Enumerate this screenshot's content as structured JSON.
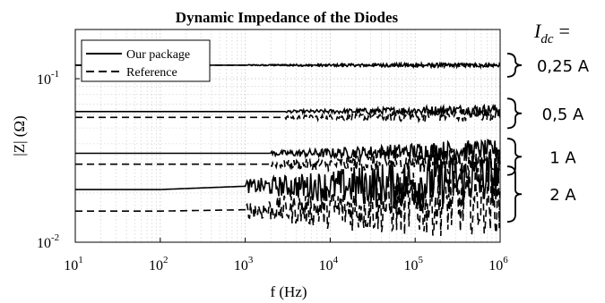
{
  "chart_data": {
    "type": "line",
    "title": "Dynamic Impedance of the Diodes",
    "xlabel": "f (Hz)",
    "ylabel": "|Z| (Ω)",
    "x_scale": "log",
    "y_scale": "log",
    "xlim": [
      10,
      1000000
    ],
    "ylim": [
      0.01,
      0.2
    ],
    "grid": true,
    "x_ticks": [
      {
        "base": "10",
        "exp": "1",
        "value": 10
      },
      {
        "base": "10",
        "exp": "2",
        "value": 100
      },
      {
        "base": "10",
        "exp": "3",
        "value": 1000
      },
      {
        "base": "10",
        "exp": "4",
        "value": 10000
      },
      {
        "base": "10",
        "exp": "5",
        "value": 100000
      },
      {
        "base": "10",
        "exp": "6",
        "value": 1000000
      }
    ],
    "y_ticks": [
      {
        "base": "10",
        "exp": "-1",
        "value": 0.1
      },
      {
        "base": "10",
        "exp": "-2",
        "value": 0.01
      }
    ],
    "legend": {
      "placement": "top-left",
      "entries": [
        {
          "label": "Our package",
          "style": "solid"
        },
        {
          "label": "Reference",
          "style": "dashed"
        }
      ]
    },
    "group_header": {
      "main": "I",
      "sub": "dc",
      "suffix": "="
    },
    "groups": [
      {
        "label": "0,25 A",
        "series": [
          {
            "label": "Our package",
            "style": "solid",
            "x": [
              10,
              100,
              1000,
              10000,
              100000,
              1000000
            ],
            "y": [
              0.121,
              0.121,
              0.121,
              0.121,
              0.121,
              0.121
            ],
            "noise_from": 1000,
            "noise": 0.012
          },
          {
            "label": "Reference",
            "style": "dashed",
            "x": [
              10,
              100,
              1000,
              10000,
              100000,
              1000000
            ],
            "y": [
              0.121,
              0.121,
              0.121,
              0.121,
              0.121,
              0.121
            ],
            "noise_from": 1000,
            "noise": 0.012
          }
        ]
      },
      {
        "label": "0,5 A",
        "series": [
          {
            "label": "Our package",
            "style": "solid",
            "x": [
              10,
              100,
              1000,
              10000,
              100000,
              1000000
            ],
            "y": [
              0.063,
              0.063,
              0.063,
              0.063,
              0.064,
              0.065
            ],
            "noise_from": 3000,
            "noise": 0.03
          },
          {
            "label": "Reference",
            "style": "dashed",
            "x": [
              10,
              100,
              1000,
              10000,
              100000,
              1000000
            ],
            "y": [
              0.058,
              0.058,
              0.058,
              0.058,
              0.059,
              0.061
            ],
            "noise_from": 3000,
            "noise": 0.04
          }
        ]
      },
      {
        "label": "1 A",
        "series": [
          {
            "label": "Our package",
            "style": "solid",
            "x": [
              10,
              100,
              1000,
              10000,
              100000,
              1000000
            ],
            "y": [
              0.035,
              0.035,
              0.035,
              0.035,
              0.036,
              0.037
            ],
            "noise_from": 2000,
            "noise": 0.06
          },
          {
            "label": "Reference",
            "style": "dashed",
            "x": [
              10,
              100,
              1000,
              10000,
              100000,
              1000000
            ],
            "y": [
              0.03,
              0.03,
              0.03,
              0.03,
              0.031,
              0.032
            ],
            "noise_from": 2000,
            "noise": 0.08
          }
        ]
      },
      {
        "label": "2 A",
        "series": [
          {
            "label": "Our package",
            "style": "solid",
            "x": [
              10,
              100,
              1000,
              10000,
              100000,
              1000000
            ],
            "y": [
              0.021,
              0.021,
              0.022,
              0.022,
              0.023,
              0.025
            ],
            "noise_from": 1000,
            "noise": 0.16
          },
          {
            "label": "Reference",
            "style": "dashed",
            "x": [
              10,
              100,
              1000,
              10000,
              100000,
              1000000
            ],
            "y": [
              0.0155,
              0.0155,
              0.0158,
              0.016,
              0.017,
              0.018
            ],
            "noise_from": 1000,
            "noise": 0.2
          }
        ]
      }
    ]
  }
}
